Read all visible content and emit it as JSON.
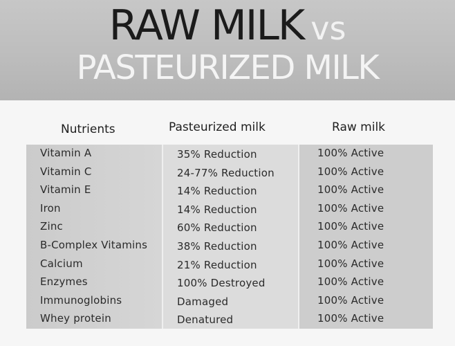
{
  "title": {
    "line1_main": "RAW MILK",
    "line1_vs": "vs",
    "line2": "PASTEURIZED MILK"
  },
  "table": {
    "headers": [
      "Nutrients",
      "Pasteurized milk",
      "Raw milk"
    ],
    "rows": [
      {
        "nutrient": "Vitamin A",
        "pasteurized": "35% Reduction",
        "raw": "100% Active"
      },
      {
        "nutrient": "Vitamin C",
        "pasteurized": "24-77% Reduction",
        "raw": "100% Active"
      },
      {
        "nutrient": "Vitamin E",
        "pasteurized": "14% Reduction",
        "raw": "100% Active"
      },
      {
        "nutrient": "Iron",
        "pasteurized": "14% Reduction",
        "raw": "100% Active"
      },
      {
        "nutrient": "Zinc",
        "pasteurized": "60% Reduction",
        "raw": "100% Active"
      },
      {
        "nutrient": "B-Complex Vitamins",
        "pasteurized": "38% Reduction",
        "raw": "100% Active"
      },
      {
        "nutrient": "Calcium",
        "pasteurized": "21% Reduction",
        "raw": "100% Active"
      },
      {
        "nutrient": "Enzymes",
        "pasteurized": "100% Destroyed",
        "raw": "100% Active"
      },
      {
        "nutrient": "Immunoglobins",
        "pasteurized": "Damaged",
        "raw": "100% Active"
      },
      {
        "nutrient": "Whey protein",
        "pasteurized": "Denatured",
        "raw": "100% Active"
      }
    ]
  }
}
